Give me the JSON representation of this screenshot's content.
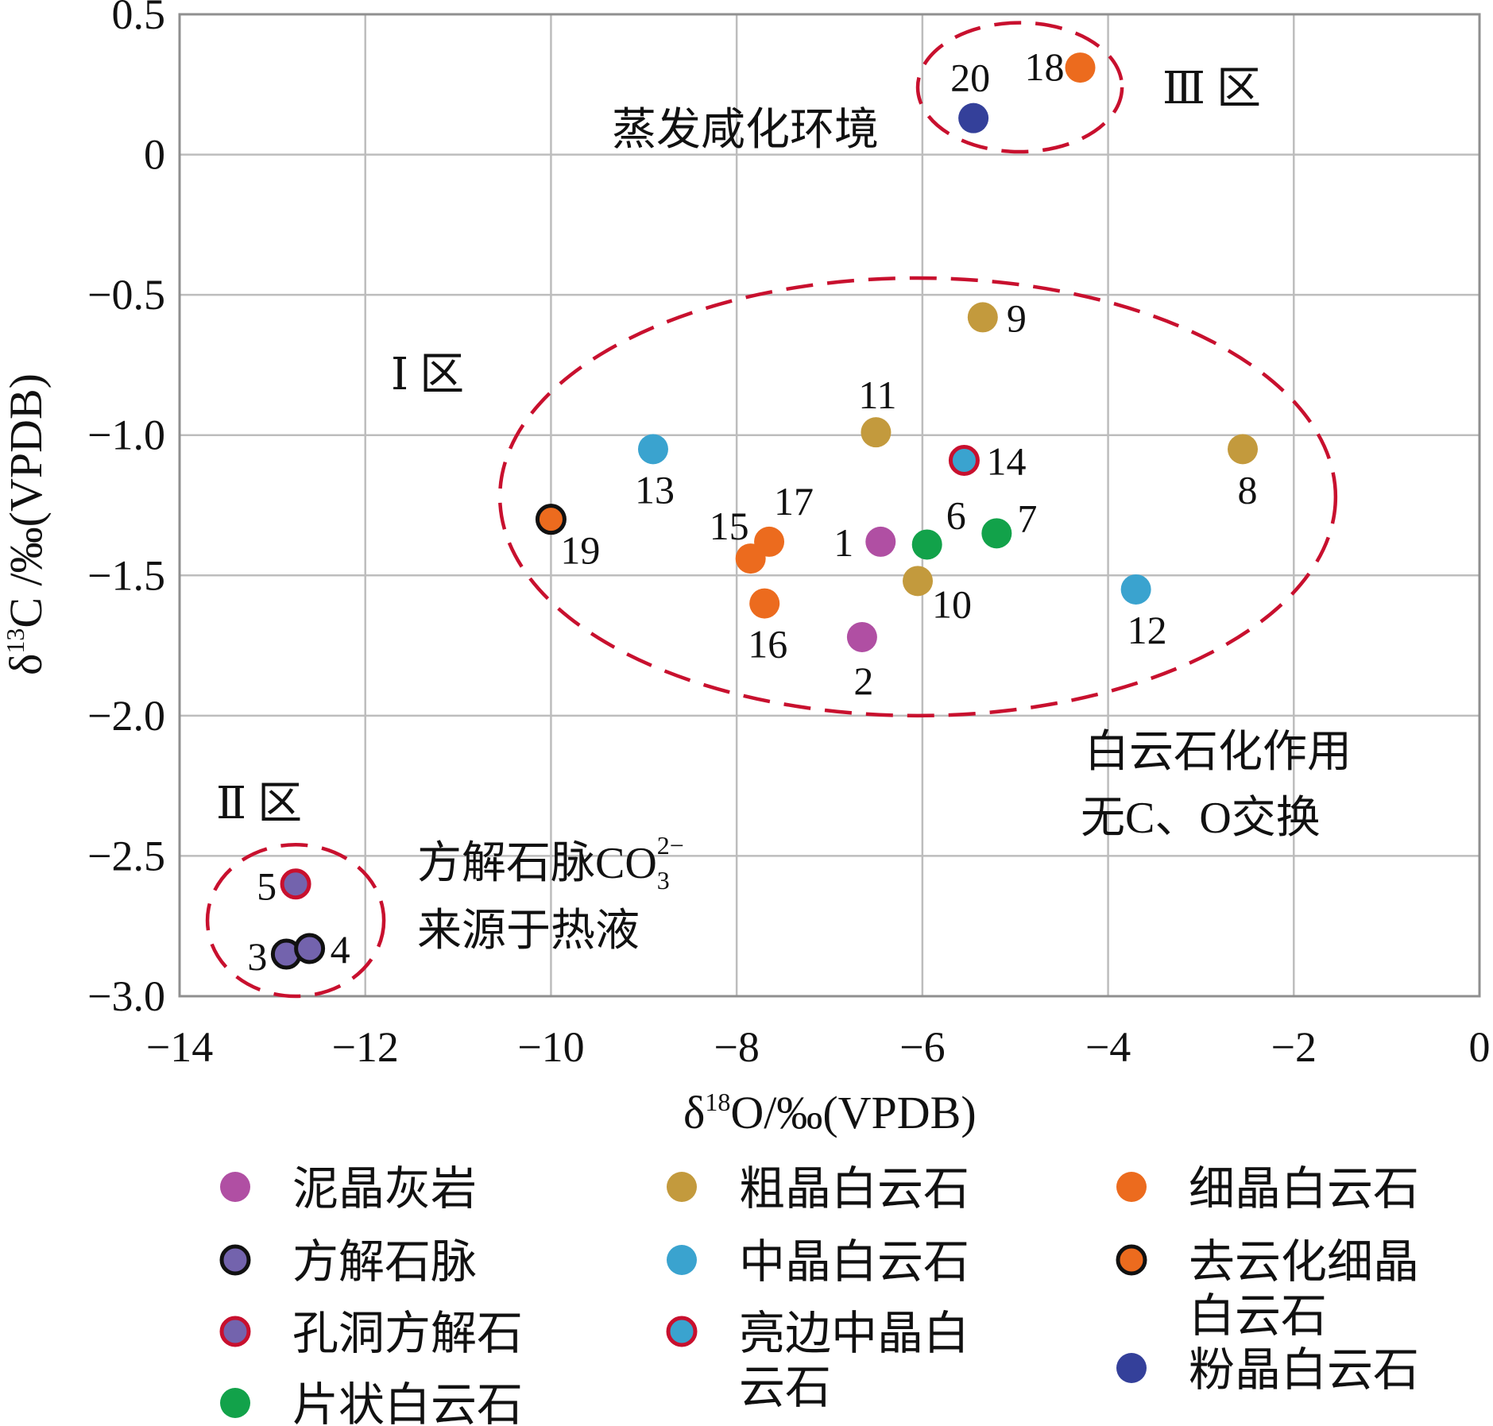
{
  "chart_data": {
    "type": "scatter",
    "xlabel_parts": {
      "prefix": "δ",
      "sup": "18",
      "suffix": "O/‰(VPDB)"
    },
    "ylabel_parts": {
      "prefix": "δ",
      "sup": "13",
      "suffix": "C /‰(VPDB)"
    },
    "xlim": [
      -14,
      0
    ],
    "ylim": [
      -3.0,
      0.5
    ],
    "xticks": [
      -14,
      -12,
      -10,
      -8,
      -6,
      -4,
      -2,
      0
    ],
    "yticks": [
      0.5,
      0,
      -0.5,
      -1.0,
      -1.5,
      -2.0,
      -2.5,
      -3.0
    ],
    "xtick_labels": [
      "−14",
      "−12",
      "−10",
      "−8",
      "−6",
      "−4",
      "−2",
      "0"
    ],
    "ytick_labels": [
      "0.5",
      "0",
      "−0.5",
      "−1.0",
      "−1.5",
      "−2.0",
      "−2.5",
      "−3.0"
    ],
    "grid": true,
    "categories": {
      "micrite": {
        "name": "泥晶灰岩",
        "fill": "#b04fa3",
        "stroke": "none"
      },
      "calcite_vein": {
        "name": "方解石脉",
        "fill": "#7363ad",
        "stroke": "#111111"
      },
      "vug_calcite": {
        "name": "孔洞方解石",
        "fill": "#7363ad",
        "stroke": "#c8102e"
      },
      "flaky_dolomite": {
        "name": "片状白云石",
        "fill": "#12a24a",
        "stroke": "none"
      },
      "coarse_dolomite": {
        "name": "粗晶白云石",
        "fill": "#c39a3d",
        "stroke": "none"
      },
      "medium_dolomite": {
        "name": "中晶白云石",
        "fill": "#3aa3cf",
        "stroke": "none"
      },
      "rimmed_medium_dolomite": {
        "name": "亮边中晶白云石",
        "fill": "#3aa3cf",
        "stroke": "#c8102e"
      },
      "fine_dolomite": {
        "name": "细晶白云石",
        "fill": "#ec6b1e",
        "stroke": "none"
      },
      "dedolomitized_fine_dolomite": {
        "name": "去云化细晶白云石",
        "fill": "#ec6b1e",
        "stroke": "#111111"
      },
      "powder_dolomite": {
        "name": "粉晶白云石",
        "fill": "#34409a",
        "stroke": "none"
      }
    },
    "points": [
      {
        "id": "1",
        "x": -6.45,
        "y": -1.38,
        "cat": "micrite"
      },
      {
        "id": "2",
        "x": -6.65,
        "y": -1.72,
        "cat": "micrite"
      },
      {
        "id": "3",
        "x": -12.85,
        "y": -2.85,
        "cat": "calcite_vein"
      },
      {
        "id": "4",
        "x": -12.6,
        "y": -2.83,
        "cat": "calcite_vein"
      },
      {
        "id": "5",
        "x": -12.75,
        "y": -2.6,
        "cat": "vug_calcite"
      },
      {
        "id": "6",
        "x": -5.95,
        "y": -1.39,
        "cat": "flaky_dolomite"
      },
      {
        "id": "7",
        "x": -5.2,
        "y": -1.35,
        "cat": "flaky_dolomite"
      },
      {
        "id": "8",
        "x": -2.55,
        "y": -1.05,
        "cat": "coarse_dolomite"
      },
      {
        "id": "9",
        "x": -5.35,
        "y": -0.58,
        "cat": "coarse_dolomite"
      },
      {
        "id": "10",
        "x": -6.05,
        "y": -1.52,
        "cat": "coarse_dolomite"
      },
      {
        "id": "11",
        "x": -6.5,
        "y": -0.99,
        "cat": "coarse_dolomite"
      },
      {
        "id": "12",
        "x": -3.7,
        "y": -1.55,
        "cat": "medium_dolomite"
      },
      {
        "id": "13",
        "x": -8.9,
        "y": -1.05,
        "cat": "medium_dolomite"
      },
      {
        "id": "14",
        "x": -5.55,
        "y": -1.09,
        "cat": "rimmed_medium_dolomite"
      },
      {
        "id": "15",
        "x": -7.85,
        "y": -1.44,
        "cat": "fine_dolomite"
      },
      {
        "id": "16",
        "x": -7.7,
        "y": -1.6,
        "cat": "fine_dolomite"
      },
      {
        "id": "17",
        "x": -7.65,
        "y": -1.38,
        "cat": "fine_dolomite"
      },
      {
        "id": "18",
        "x": -4.3,
        "y": 0.31,
        "cat": "fine_dolomite"
      },
      {
        "id": "19",
        "x": -10.0,
        "y": -1.3,
        "cat": "dedolomitized_fine_dolomite"
      },
      {
        "id": "20",
        "x": -5.45,
        "y": 0.13,
        "cat": "powder_dolomite"
      }
    ],
    "annotations": {
      "zone1": "Ⅰ 区",
      "zone2": "Ⅱ 区",
      "zone3": "Ⅲ 区",
      "evaporite": "蒸发咸化环境",
      "dolomitization_line1": "白云石化作用",
      "dolomitization_line2": "无C、O交换",
      "hydrothermal_line1_prefix": "方解石脉CO",
      "hydrothermal_line1_sub": "3",
      "hydrothermal_line1_sup": "2−",
      "hydrothermal_line2": "来源于热液"
    },
    "legend": [
      {
        "cat": "micrite",
        "lines": [
          "泥晶灰岩"
        ]
      },
      {
        "cat": "calcite_vein",
        "lines": [
          "方解石脉"
        ]
      },
      {
        "cat": "vug_calcite",
        "lines": [
          "孔洞方解石"
        ]
      },
      {
        "cat": "flaky_dolomite",
        "lines": [
          "片状白云石"
        ]
      },
      {
        "cat": "coarse_dolomite",
        "lines": [
          "粗晶白云石"
        ]
      },
      {
        "cat": "medium_dolomite",
        "lines": [
          "中晶白云石"
        ]
      },
      {
        "cat": "rimmed_medium_dolomite",
        "lines": [
          "亮边中晶白",
          "云石"
        ]
      },
      {
        "cat": "fine_dolomite",
        "lines": [
          "细晶白云石"
        ]
      },
      {
        "cat": "dedolomitized_fine_dolomite",
        "lines": [
          "去云化细晶",
          "白云石"
        ]
      },
      {
        "cat": "powder_dolomite",
        "lines": [
          "粉晶白云石"
        ]
      }
    ],
    "ellipse_color": "#c8102e",
    "grid_color": "#bdbdbd",
    "axis_color": "#8f8f8f"
  }
}
